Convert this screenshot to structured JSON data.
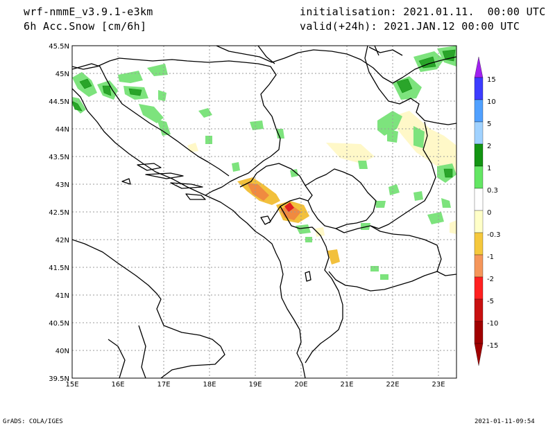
{
  "header": {
    "model": "wrf-nmmE_v3.9.1-e3km",
    "field": "6h Acc.Snow [cm/6h]",
    "init": "initialisation: 2021.01.11.  00:00 UTC",
    "valid": "valid(+24h): 2021.JAN.12 00:00 UTC"
  },
  "footer": {
    "left": "GrADS: COLA/IGES",
    "right": "2021-01-11-09:54"
  },
  "axes": {
    "lon_ticks": [
      "15E",
      "16E",
      "17E",
      "18E",
      "19E",
      "20E",
      "21E",
      "22E",
      "23E"
    ],
    "lat_ticks": [
      "45.5N",
      "45N",
      "44.5N",
      "44N",
      "43.5N",
      "43N",
      "42.5N",
      "42N",
      "41.5N",
      "41N",
      "40.5N",
      "40N",
      "39.5N"
    ]
  },
  "colorbar": {
    "labels": [
      "15",
      "10",
      "5",
      "2",
      "1",
      "0.3",
      "0",
      "-0.3",
      "-1",
      "-2",
      "-5",
      "-10",
      "-15"
    ],
    "colors": [
      "#a020f0",
      "#3c3cff",
      "#50a0ff",
      "#a0d2ff",
      "#129412",
      "#64e664",
      "#ffffff",
      "#ffffc8",
      "#f5c83c",
      "#f5965a",
      "#ff2020",
      "#c81010",
      "#a00000"
    ]
  },
  "map_colors": {
    "light_green": "#7de37d",
    "mid_green": "#2aa52a",
    "dark_green": "#0e8e0e",
    "light_yellow": "#fff8c8",
    "yellow": "#f2c03c",
    "orange": "#f08a40",
    "red": "#e02020",
    "grid": "#9a9a9a"
  }
}
